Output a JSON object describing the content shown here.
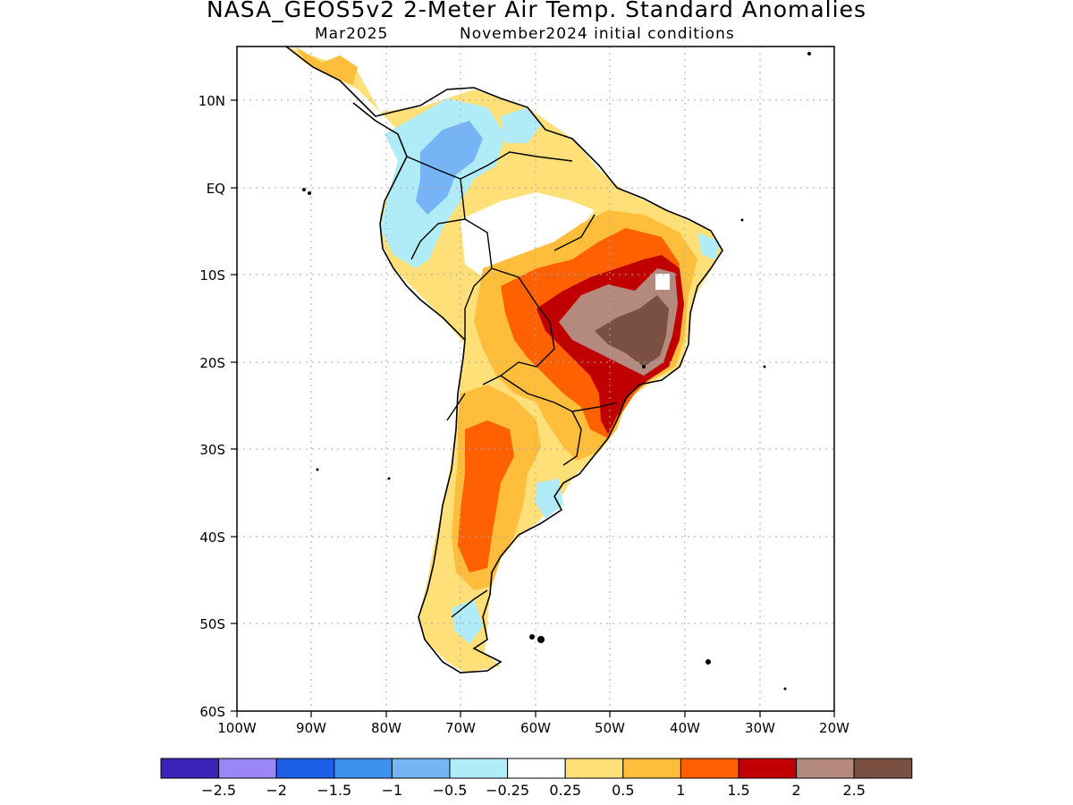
{
  "title": "NASA_GEOS5v2 2-Meter Air Temp. Standard Anomalies",
  "subtitle_left": "Mar2025",
  "subtitle_right": "November2024 initial conditions",
  "lat_labels": [
    "10N",
    "EQ",
    "10S",
    "20S",
    "30S",
    "40S",
    "50S",
    "60S"
  ],
  "lon_labels": [
    "100W",
    "90W",
    "80W",
    "70W",
    "60W",
    "50W",
    "40W",
    "30W",
    "20W"
  ],
  "colorbar": {
    "colors": [
      "#3a24b8",
      "#9a86f4",
      "#1d5fe6",
      "#3c92ef",
      "#76b4f5",
      "#b0ecf7",
      "#ffffff",
      "#ffe078",
      "#ffbd3c",
      "#ff6000",
      "#c00000",
      "#b48a7e",
      "#7a5042"
    ],
    "labels": [
      "-2.5",
      "-2",
      "-1.5",
      "-1",
      "-0.5",
      "-0.25",
      "0.25",
      "0.5",
      "1",
      "1.5",
      "2",
      "2.5"
    ]
  },
  "colors": {
    "anomaly_warm_1": "#ffe078",
    "anomaly_warm_2": "#ffbd3c",
    "anomaly_warm_3": "#ff6000",
    "anomaly_warm_4": "#c00000",
    "anomaly_warm_5": "#b48a7e",
    "anomaly_warm_6": "#7a5042",
    "anomaly_cool_1": "#b0ecf7",
    "anomaly_cool_2": "#76b4f5"
  }
}
